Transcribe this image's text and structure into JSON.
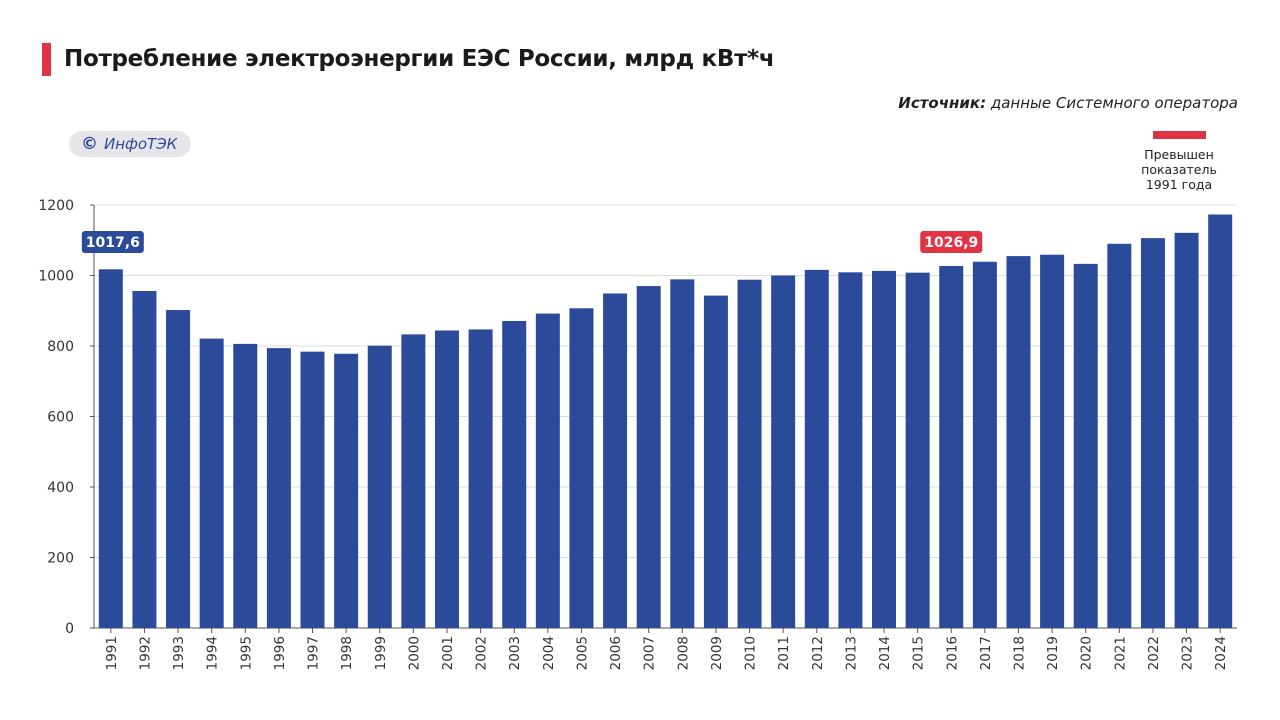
{
  "title": "Потребление электроэнергии ЕЭС России, млрд кВт*ч",
  "source": {
    "label": "Источник:",
    "text": " данные Системного оператора"
  },
  "brand": {
    "symbol": "©",
    "name": "ИнфоТЭК"
  },
  "legend": {
    "label": "Превышен показатель 1991 года",
    "color": "#e03344"
  },
  "colors": {
    "bar": "#2c4a9a",
    "highlight": "#e03344",
    "label_blue": "#2c4a9a"
  },
  "chart_data": {
    "type": "bar",
    "categories": [
      "1991",
      "1992",
      "1993",
      "1994",
      "1995",
      "1996",
      "1997",
      "1998",
      "1999",
      "2000",
      "2001",
      "2002",
      "2003",
      "2004",
      "2005",
      "2006",
      "2007",
      "2008",
      "2009",
      "2010",
      "2011",
      "2012",
      "2013",
      "2014",
      "2015",
      "2016",
      "2017",
      "2018",
      "2019",
      "2020",
      "2021",
      "2022",
      "2023",
      "2024"
    ],
    "values": [
      1017.6,
      956,
      902,
      821,
      806,
      794,
      784,
      778,
      801,
      833,
      844,
      847,
      871,
      892,
      907,
      949,
      970,
      989,
      943,
      988,
      1000,
      1016,
      1009,
      1013,
      1008,
      1026.9,
      1039,
      1055,
      1059,
      1033,
      1090,
      1106,
      1121,
      1173
    ],
    "ylim": [
      0,
      1200
    ],
    "yticks": [
      0,
      200,
      400,
      600,
      800,
      1000,
      1200
    ],
    "grid": true,
    "annotations": [
      {
        "category": "1991",
        "text": "1017,6",
        "color": "#2c4a9a"
      },
      {
        "category": "2016",
        "text": "1026,9",
        "color": "#e03344"
      }
    ]
  }
}
